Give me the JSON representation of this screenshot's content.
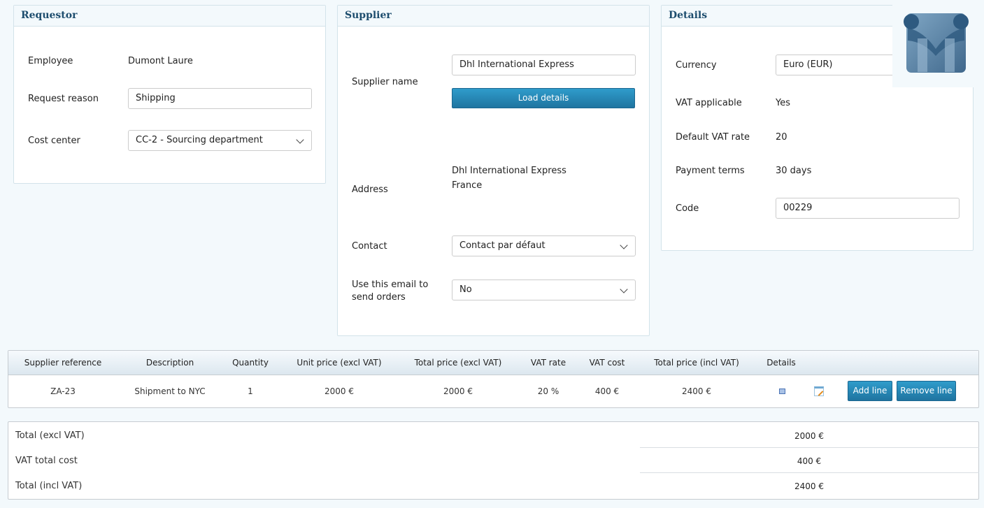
{
  "requestor": {
    "title": "Requestor",
    "employee_label": "Employee",
    "employee_value": "Dumont Laure",
    "reason_label": "Request reason",
    "reason_value": "Shipping",
    "cost_center_label": "Cost center",
    "cost_center_value": "CC-2 - Sourcing department"
  },
  "supplier": {
    "title": "Supplier",
    "name_label": "Supplier name",
    "name_value": "Dhl International Express",
    "load_button": "Load details",
    "address_label": "Address",
    "address_line1": "Dhl International Express",
    "address_line2": "France",
    "contact_label": "Contact",
    "contact_value": "Contact par défaut",
    "email_label_1": "Use this email to",
    "email_label_2": "send orders",
    "email_value": "No"
  },
  "details": {
    "title": "Details",
    "currency_label": "Currency",
    "currency_value": "Euro (EUR)",
    "vat_applicable_label": "VAT applicable",
    "vat_applicable_value": "Yes",
    "default_vat_label": "Default VAT rate",
    "default_vat_value": "20",
    "payment_terms_label": "Payment terms",
    "payment_terms_value": "30 days",
    "code_label": "Code",
    "code_value": "00229"
  },
  "lines": {
    "headers": [
      "Supplier reference",
      "Description",
      "Quantity",
      "Unit price (excl VAT)",
      "Total price (excl VAT)",
      "VAT rate",
      "VAT cost",
      "Total price (incl VAT)",
      "Details"
    ],
    "rows": [
      [
        "ZA-23",
        "Shipment to NYC",
        "1",
        "2000 €",
        "2000 €",
        "20 %",
        "400 €",
        "2400 €"
      ]
    ],
    "add_button": "Add line",
    "remove_button": "Remove line",
    "icons": [
      "details-grid-icon",
      "edit-note-icon"
    ]
  },
  "totals": [
    {
      "label": "Total (excl VAT)",
      "value": "2000 €"
    },
    {
      "label": "VAT total cost",
      "value": "400 €"
    },
    {
      "label": "Total (incl VAT)",
      "value": "2400 €"
    }
  ],
  "colors": {
    "accent": "#2589b8",
    "heading": "#1d4d6e",
    "background": "#f3f9fc"
  }
}
